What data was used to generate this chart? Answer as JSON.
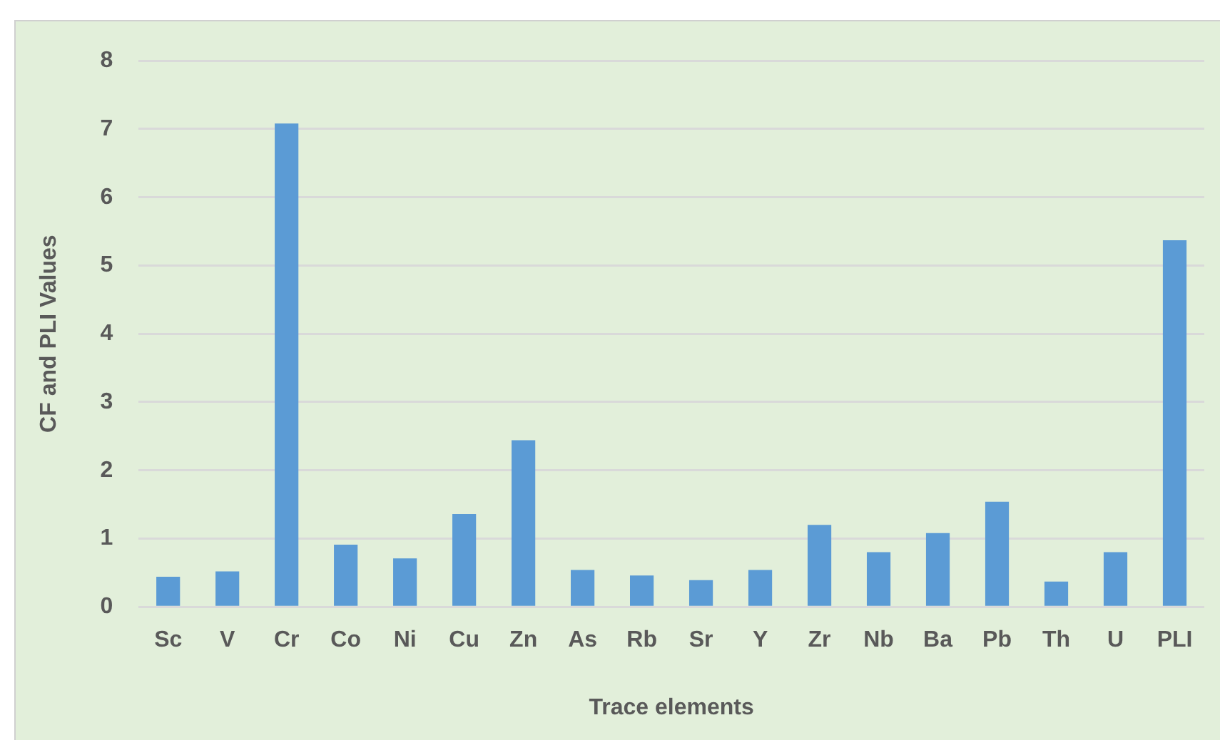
{
  "chart_data": {
    "type": "bar",
    "xlabel": "Trace elements",
    "ylabel": "CF and PLI Values",
    "categories": [
      "Sc",
      "V",
      "Cr",
      "Co",
      "Ni",
      "Cu",
      "Zn",
      "As",
      "Rb",
      "Sr",
      "Y",
      "Zr",
      "Nb",
      "Ba",
      "Pb",
      "Th",
      "U",
      "PLI"
    ],
    "values": [
      0.44,
      0.52,
      7.08,
      0.91,
      0.71,
      1.36,
      2.44,
      0.54,
      0.46,
      0.39,
      0.54,
      1.2,
      0.8,
      1.08,
      1.54,
      0.37,
      0.8,
      5.37
    ],
    "color": "#5b9bd5",
    "ylim": [
      0,
      8
    ],
    "yticks": [
      0,
      1,
      2,
      3,
      4,
      5,
      6,
      7,
      8
    ],
    "grid": "y",
    "legend": false
  }
}
